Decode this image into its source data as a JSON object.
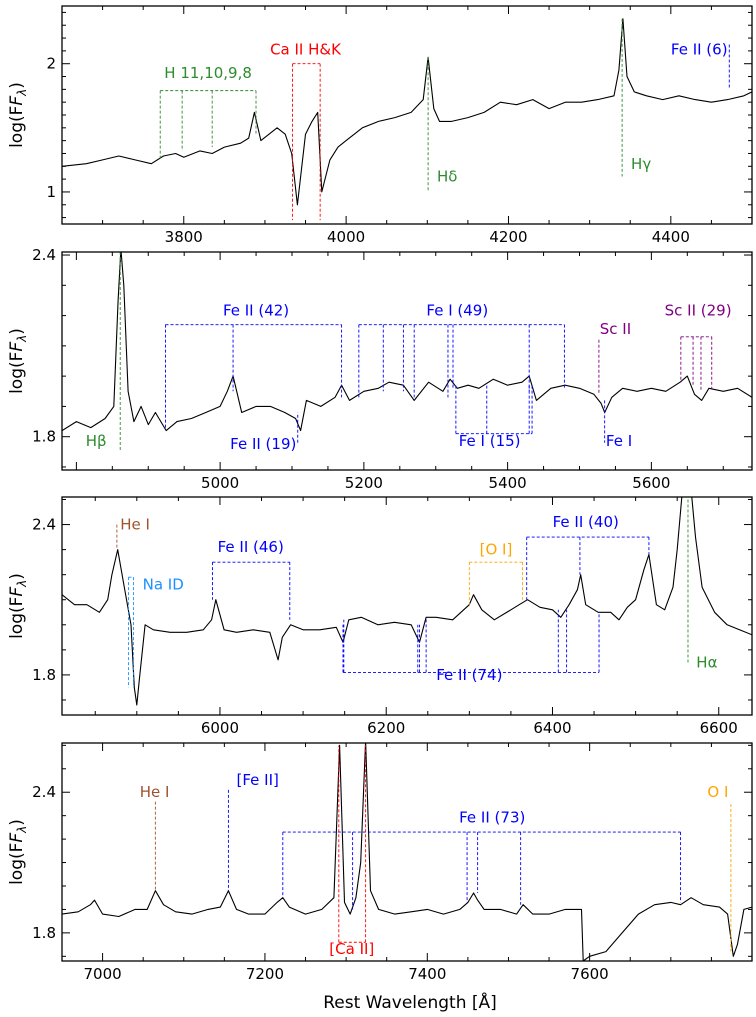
{
  "figure": {
    "xlabel": "Rest Wavelength [Å]",
    "ylabel_text": "log(F",
    "ylabel_sub": "λ",
    "ylabel_close": ")"
  },
  "chart_data": [
    {
      "type": "line",
      "panel": 1,
      "xlim": [
        3650,
        4500
      ],
      "ylim": [
        0.75,
        2.45
      ],
      "xticks": [
        3800,
        4000,
        4200,
        4400
      ],
      "yticks": [
        1,
        2
      ],
      "series": [
        {
          "x": [
            3650,
            3680,
            3700,
            3720,
            3740,
            3760,
            3775,
            3790,
            3800,
            3820,
            3835,
            3850,
            3870,
            3880,
            3887,
            3895,
            3905,
            3915,
            3925,
            3933,
            3940,
            3950,
            3958,
            3965,
            3970,
            3980,
            3990,
            4000,
            4020,
            4040,
            4060,
            4080,
            4095,
            4101,
            4108,
            4115,
            4130,
            4150,
            4170,
            4190,
            4210,
            4230,
            4250,
            4270,
            4290,
            4310,
            4330,
            4336,
            4341,
            4346,
            4355,
            4370,
            4390,
            4410,
            4430,
            4450,
            4470,
            4490,
            4500
          ],
          "y": [
            1.2,
            1.22,
            1.25,
            1.28,
            1.25,
            1.22,
            1.28,
            1.3,
            1.27,
            1.32,
            1.3,
            1.35,
            1.38,
            1.42,
            1.62,
            1.4,
            1.45,
            1.5,
            1.45,
            1.3,
            0.9,
            1.45,
            1.55,
            1.62,
            1.0,
            1.25,
            1.35,
            1.4,
            1.5,
            1.55,
            1.58,
            1.62,
            1.72,
            2.05,
            1.65,
            1.55,
            1.55,
            1.58,
            1.62,
            1.7,
            1.68,
            1.72,
            1.65,
            1.7,
            1.7,
            1.72,
            1.75,
            1.95,
            2.35,
            1.9,
            1.78,
            1.75,
            1.72,
            1.75,
            1.72,
            1.7,
            1.72,
            1.75,
            1.78
          ]
        }
      ],
      "annotations": [
        {
          "label": "H 11,10,9,8",
          "color": "#2e8b2e",
          "lines": [
            3771,
            3798,
            3835,
            3889
          ],
          "y_bar": 1.79,
          "y_end": [
            1.26,
            1.32,
            1.35,
            1.45
          ],
          "label_x": 3830,
          "label_y": 1.89
        },
        {
          "label": "Ca II H&K",
          "color": "#ff0000",
          "lines": [
            3934,
            3968
          ],
          "y_bar": 2.0,
          "y_end": [
            0.78,
            0.78
          ],
          "label_x": 3950,
          "label_y": 2.07
        },
        {
          "label": "Hδ",
          "color": "#2e8b2e",
          "lines": [
            4101
          ],
          "y_end": [
            1.0
          ],
          "label_x": 4112,
          "label_y": 1.08,
          "anchor": "start",
          "top": 2.05
        },
        {
          "label": "Hγ",
          "color": "#2e8b2e",
          "lines": [
            4340
          ],
          "y_end": [
            1.12
          ],
          "label_x": 4351,
          "label_y": 1.18,
          "anchor": "start",
          "top": 2.35
        },
        {
          "label": "Fe II (6)",
          "color": "#0000ff",
          "lines": [
            4472
          ],
          "y_end": [
            1.8
          ],
          "label_x": 4435,
          "label_y": 2.07,
          "top": 2.15
        }
      ]
    },
    {
      "type": "line",
      "panel": 2,
      "xlim": [
        4780,
        5740
      ],
      "ylim": [
        1.69,
        2.41
      ],
      "xticks": [
        5000,
        5200,
        5400,
        5600
      ],
      "yticks": [
        1.8,
        2.4
      ],
      "series": [
        {
          "x": [
            4780,
            4800,
            4820,
            4840,
            4852,
            4858,
            4862,
            4866,
            4872,
            4880,
            4890,
            4900,
            4910,
            4925,
            4940,
            4960,
            4980,
            5000,
            5010,
            5018,
            5030,
            5050,
            5070,
            5090,
            5105,
            5112,
            5120,
            5140,
            5160,
            5169,
            5180,
            5200,
            5220,
            5235,
            5255,
            5270,
            5290,
            5310,
            5320,
            5330,
            5345,
            5360,
            5380,
            5400,
            5420,
            5430,
            5440,
            5460,
            5480,
            5500,
            5520,
            5530,
            5535,
            5545,
            5560,
            5580,
            5600,
            5620,
            5640,
            5650,
            5660,
            5670,
            5680,
            5700,
            5720,
            5740
          ],
          "y": [
            1.82,
            1.85,
            1.83,
            1.86,
            1.9,
            2.25,
            2.42,
            2.3,
            1.95,
            1.85,
            1.9,
            1.84,
            1.88,
            1.82,
            1.85,
            1.86,
            1.88,
            1.9,
            1.95,
            2.0,
            1.88,
            1.9,
            1.9,
            1.88,
            1.86,
            1.82,
            1.92,
            1.9,
            1.93,
            1.97,
            1.92,
            1.95,
            1.96,
            1.98,
            1.97,
            1.92,
            1.98,
            1.95,
            1.99,
            1.96,
            1.97,
            1.96,
            1.99,
            1.97,
            1.98,
            2.0,
            1.92,
            1.96,
            1.97,
            1.96,
            1.94,
            1.91,
            1.88,
            1.93,
            1.96,
            1.95,
            1.96,
            1.95,
            1.98,
            2.0,
            1.94,
            1.92,
            1.96,
            1.95,
            1.96,
            1.93
          ]
        }
      ],
      "annotations": [
        {
          "label": "Hβ",
          "color": "#2e8b2e",
          "lines": [
            4861
          ],
          "y_end": [
            1.75
          ],
          "label_x": 4842,
          "label_y": 1.77,
          "anchor": "end",
          "top": 2.41
        },
        {
          "label": "Fe II (42)",
          "color": "#0000ff",
          "lines": [
            4924,
            5018,
            5169
          ],
          "y_bar": 2.17,
          "y_end": [
            1.83,
            1.95,
            1.93
          ],
          "label_x": 5050,
          "label_y": 2.2
        },
        {
          "label": "Fe II (19)",
          "color": "#0000ff",
          "lines": [
            5108
          ],
          "y_end": [
            1.88
          ],
          "label_x": 5060,
          "label_y": 1.76,
          "top": 1.78,
          "bottom_label": true
        },
        {
          "label": "Fe I (49)",
          "color": "#0000ff",
          "lines": [
            5193,
            5227,
            5255,
            5270,
            5317,
            5324,
            5430,
            5479
          ],
          "y_bar": 2.17,
          "y_end": [
            1.93,
            1.95,
            1.95,
            1.93,
            1.93,
            1.96,
            1.95,
            1.96
          ],
          "label_x": 5330,
          "label_y": 2.2
        },
        {
          "label": "Fe I (15)",
          "color": "#0000ff",
          "lines": [
            5328,
            5371,
            5430,
            5434
          ],
          "y_bar": 1.81,
          "y_start": [
            1.97,
            1.97,
            1.97,
            1.97
          ],
          "label_x": 5375,
          "label_y": 1.77,
          "bottom_bar": true
        },
        {
          "label": "Sc II",
          "color": "#800080",
          "lines": [
            5527
          ],
          "y_end": [
            1.94
          ],
          "label_x": 5550,
          "label_y": 2.14,
          "top": 2.12
        },
        {
          "label": "Fe I",
          "color": "#0000ff",
          "lines": [
            5535
          ],
          "y_end": [
            1.78
          ],
          "label_x": 5555,
          "label_y": 1.77,
          "top": 1.92,
          "bottom_label": true
        },
        {
          "label": "Sc II (29)",
          "color": "#800080",
          "lines": [
            5641,
            5658,
            5669,
            5684
          ],
          "y_bar": 2.13,
          "y_end": [
            1.98,
            1.97,
            1.95,
            1.96
          ],
          "label_x": 5665,
          "label_y": 2.2
        }
      ]
    },
    {
      "type": "line",
      "panel": 3,
      "xlim": [
        5810,
        6640
      ],
      "ylim": [
        1.64,
        2.51
      ],
      "xticks": [
        6000,
        6200,
        6400,
        6600
      ],
      "yticks": [
        1.8,
        2.4
      ],
      "series": [
        {
          "x": [
            5810,
            5825,
            5840,
            5855,
            5865,
            5870,
            5877,
            5885,
            5893,
            5897,
            5900,
            5903,
            5910,
            5920,
            5940,
            5960,
            5980,
            5990,
            5995,
            6005,
            6020,
            6040,
            6060,
            6070,
            6075,
            6085,
            6100,
            6120,
            6140,
            6148,
            6155,
            6170,
            6190,
            6210,
            6230,
            6240,
            6248,
            6260,
            6280,
            6300,
            6305,
            6315,
            6330,
            6350,
            6360,
            6370,
            6385,
            6400,
            6410,
            6420,
            6430,
            6434,
            6440,
            6455,
            6470,
            6480,
            6490,
            6500,
            6510,
            6516,
            6525,
            6535,
            6545,
            6550,
            6558,
            6565,
            6572,
            6580,
            6595,
            6610,
            6625,
            6640
          ],
          "y": [
            2.12,
            2.08,
            2.08,
            2.05,
            2.1,
            2.2,
            2.3,
            2.15,
            2.0,
            1.75,
            1.68,
            1.78,
            2.0,
            1.98,
            1.97,
            1.97,
            1.98,
            2.02,
            2.1,
            1.98,
            1.97,
            1.98,
            1.97,
            1.86,
            1.95,
            2.0,
            1.98,
            1.98,
            1.99,
            1.93,
            2.02,
            2.03,
            2.0,
            2.01,
            2.0,
            1.93,
            2.03,
            2.03,
            2.02,
            2.08,
            2.12,
            2.06,
            2.02,
            2.06,
            2.08,
            2.1,
            2.07,
            2.06,
            2.03,
            2.08,
            2.14,
            2.2,
            2.08,
            2.05,
            2.05,
            2.02,
            2.07,
            2.1,
            2.22,
            2.28,
            2.08,
            2.06,
            2.15,
            2.3,
            2.6,
            2.6,
            2.35,
            2.15,
            2.05,
            2.0,
            1.98,
            1.96
          ]
        }
      ],
      "annotations": [
        {
          "label": "He I",
          "color": "#a0522d",
          "lines": [
            5876
          ],
          "y_end": [
            2.3
          ],
          "label_x": 5880,
          "label_y": 2.38,
          "anchor": "start",
          "top": 2.4
        },
        {
          "label": "Na ID",
          "color": "#1e90ff",
          "lines": [
            5890,
            5896
          ],
          "y_bar": 2.19,
          "y_end": [
            1.75,
            1.75
          ],
          "label_x": 5907,
          "label_y": 2.14,
          "anchor": "start"
        },
        {
          "label": "Fe II (46)",
          "color": "#0000ff",
          "lines": [
            5991,
            6084
          ],
          "y_bar": 2.25,
          "y_end": [
            2.1,
            2.02
          ],
          "label_x": 6037,
          "label_y": 2.29
        },
        {
          "label": "[O I]",
          "color": "#ffa500",
          "lines": [
            6300,
            6364
          ],
          "y_bar": 2.25,
          "y_end": [
            2.08,
            2.1
          ],
          "label_x": 6332,
          "label_y": 2.28
        },
        {
          "label": "Fe II (40)",
          "color": "#0000ff",
          "lines": [
            6369,
            6433,
            6516
          ],
          "y_bar": 2.35,
          "y_end": [
            2.1,
            2.2,
            2.28
          ],
          "label_x": 6440,
          "label_y": 2.39
        },
        {
          "label": "Fe II (74)",
          "color": "#0000ff",
          "lines": [
            6148,
            6149,
            6238,
            6240,
            6248,
            6407,
            6417,
            6456
          ],
          "y_bar": 1.81,
          "y_start": [
            2.0,
            2.02,
            2.0,
            2.0,
            2.03,
            2.06,
            2.06,
            2.05
          ],
          "label_x": 6300,
          "label_y": 1.78,
          "bottom_bar": true
        },
        {
          "label": "Hα",
          "color": "#2e8b2e",
          "lines": [
            6563
          ],
          "y_end": [
            1.85
          ],
          "label_x": 6573,
          "label_y": 1.83,
          "anchor": "start",
          "top": 2.5
        }
      ]
    },
    {
      "type": "line",
      "panel": 4,
      "xlim": [
        6950,
        7800
      ],
      "ylim": [
        1.68,
        2.61
      ],
      "xticks": [
        7000,
        7200,
        7400,
        7600
      ],
      "yticks": [
        1.8,
        2.4
      ],
      "series": [
        {
          "x": [
            6950,
            6970,
            6985,
            6990,
            7000,
            7020,
            7040,
            7055,
            7065,
            7075,
            7090,
            7110,
            7130,
            7145,
            7155,
            7165,
            7180,
            7200,
            7215,
            7222,
            7230,
            7250,
            7270,
            7285,
            7292,
            7298,
            7305,
            7312,
            7318,
            7324,
            7330,
            7340,
            7360,
            7380,
            7400,
            7420,
            7440,
            7450,
            7457,
            7462,
            7470,
            7490,
            7510,
            7518,
            7530,
            7550,
            7570,
            7585,
            7590,
            7592,
            7600,
            7620,
            7640,
            7660,
            7680,
            7700,
            7712,
            7725,
            7740,
            7760,
            7770,
            7777,
            7782,
            7790,
            7800
          ],
          "y": [
            1.88,
            1.89,
            1.92,
            1.94,
            1.88,
            1.87,
            1.9,
            1.9,
            1.98,
            1.92,
            1.89,
            1.88,
            1.9,
            1.91,
            1.98,
            1.9,
            1.88,
            1.88,
            1.93,
            1.95,
            1.91,
            1.88,
            1.9,
            1.95,
            2.6,
            1.93,
            1.88,
            1.95,
            2.1,
            2.62,
            1.98,
            1.9,
            1.88,
            1.89,
            1.9,
            1.88,
            1.9,
            1.93,
            1.97,
            1.94,
            1.9,
            1.9,
            1.88,
            1.92,
            1.88,
            1.88,
            1.9,
            1.9,
            1.9,
            1.68,
            1.7,
            1.72,
            1.8,
            1.88,
            1.92,
            1.93,
            1.92,
            1.95,
            1.92,
            1.91,
            1.88,
            1.7,
            1.75,
            1.9,
            1.91
          ]
        }
      ],
      "annotations": [
        {
          "label": "He I",
          "color": "#a0522d",
          "lines": [
            7065
          ],
          "y_end": [
            1.98
          ],
          "label_x": 7064,
          "label_y": 2.38,
          "top": 2.36
        },
        {
          "label": "[Fe II]",
          "color": "#0000ff",
          "lines": [
            7155
          ],
          "y_end": [
            1.98
          ],
          "label_x": 7165,
          "label_y": 2.43,
          "anchor": "start",
          "top": 2.41
        },
        {
          "label": "Fe II (73)",
          "color": "#0000ff",
          "lines": [
            7222,
            7308,
            7449,
            7462,
            7515,
            7712
          ],
          "y_bar": 2.23,
          "y_end": [
            1.95,
            1.9,
            1.93,
            1.97,
            1.92,
            1.93
          ],
          "label_x": 7480,
          "label_y": 2.27
        },
        {
          "label": "[Ca II]",
          "color": "#ff0000",
          "lines": [
            7291,
            7324
          ],
          "y_bar": 1.76,
          "y_start": [
            2.6,
            2.6
          ],
          "label_x": 7307,
          "label_y": 1.71,
          "bottom_bar": true
        },
        {
          "label": "O I",
          "color": "#ffa500",
          "lines": [
            7774
          ],
          "y_end": [
            1.72
          ],
          "label_x": 7758,
          "label_y": 2.38,
          "top": 2.35
        }
      ]
    }
  ]
}
